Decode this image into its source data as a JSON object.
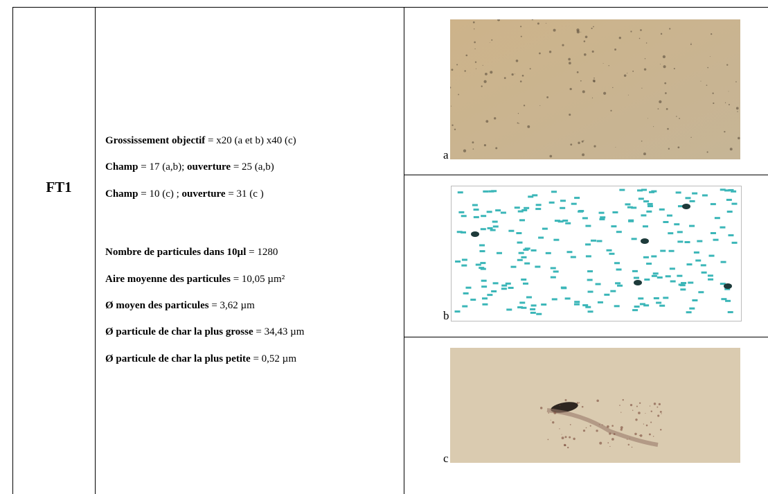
{
  "table": {
    "row_label": "FT1",
    "lines_top": [
      [
        "Grossissement objectif",
        " = x20 (a et b) x40 (c)"
      ],
      [
        "Champ",
        " = 17 (a,b); ",
        "ouverture",
        " = 25 (a,b)"
      ],
      [
        "Champ",
        " = 10 (c) ; ",
        "ouverture",
        " = 31 (c )"
      ]
    ],
    "lines_bottom": [
      [
        "Nombre de particules dans 10µl",
        " = 1280"
      ],
      [
        "Aire moyenne des particules",
        " = 10,05 µm²"
      ],
      [
        "Ø moyen des particules",
        " = 3,62 µm"
      ],
      [
        "Ø particule de char la plus grosse",
        " = 34,43 µm"
      ],
      [
        "Ø particule de char la plus petite",
        " = 0,52 µm"
      ]
    ],
    "images": [
      {
        "label": "a"
      },
      {
        "label": "b"
      },
      {
        "label": "c"
      }
    ]
  }
}
